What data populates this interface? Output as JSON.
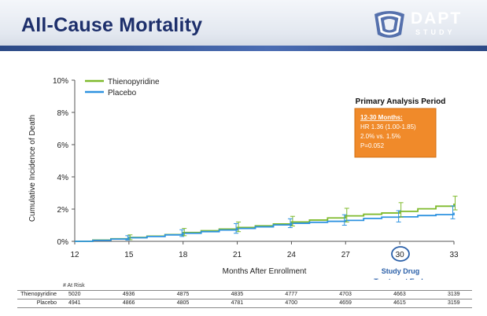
{
  "header": {
    "title": "All-Cause Mortality",
    "logo_main": "DAPT",
    "logo_sub": "STUDY"
  },
  "colors": {
    "thienopyridine": "#7fba2c",
    "placebo": "#2f93e0",
    "box": "#f08a2a",
    "header_blue": "#1d2f6b"
  },
  "chart_data": {
    "type": "line",
    "ylabel": "Cumulative Incidence of Death",
    "xlabel": "Months After Enrollment",
    "x_ticks": [
      12,
      15,
      18,
      21,
      24,
      27,
      30,
      33
    ],
    "y_ticks": [
      "0%",
      "2%",
      "4%",
      "6%",
      "8%",
      "10%"
    ],
    "xlim": [
      12,
      33
    ],
    "ylim": [
      0,
      10
    ],
    "highlight_tick": "30",
    "highlight_note": "Study Drug Treatment Ends",
    "legend": [
      "Thienopyridine",
      "Placebo"
    ],
    "series": [
      {
        "name": "Thienopyridine",
        "x": [
          12,
          13,
          14,
          15,
          16,
          17,
          18,
          19,
          20,
          21,
          22,
          23,
          24,
          25,
          26,
          27,
          28,
          29,
          30,
          31,
          32,
          33
        ],
        "values": [
          0,
          0.08,
          0.16,
          0.24,
          0.32,
          0.42,
          0.55,
          0.66,
          0.76,
          0.86,
          0.96,
          1.08,
          1.2,
          1.32,
          1.45,
          1.58,
          1.68,
          1.76,
          1.86,
          2.02,
          2.18,
          2.34
        ],
        "error_x": [
          15,
          18,
          21,
          24,
          27,
          30,
          33
        ],
        "error_lo": [
          0.1,
          0.35,
          0.6,
          0.95,
          1.2,
          1.5,
          1.95
        ],
        "error_hi": [
          0.4,
          0.8,
          1.2,
          1.55,
          2.05,
          2.4,
          2.8
        ]
      },
      {
        "name": "Placebo",
        "x": [
          12,
          13,
          14,
          15,
          16,
          17,
          18,
          19,
          20,
          21,
          22,
          23,
          24,
          25,
          26,
          27,
          28,
          29,
          30,
          31,
          32,
          33
        ],
        "values": [
          0,
          0.06,
          0.14,
          0.22,
          0.3,
          0.4,
          0.5,
          0.6,
          0.7,
          0.8,
          0.9,
          1.02,
          1.12,
          1.18,
          1.24,
          1.3,
          1.42,
          1.5,
          1.52,
          1.6,
          1.66,
          1.78
        ],
        "error_x": [
          15,
          18,
          21,
          24,
          27,
          30,
          33
        ],
        "error_lo": [
          0.08,
          0.3,
          0.5,
          0.85,
          1.0,
          1.2,
          1.4
        ],
        "error_hi": [
          0.35,
          0.72,
          1.1,
          1.4,
          1.65,
          1.9,
          2.2
        ]
      }
    ],
    "annotation_box": {
      "title": "Primary Analysis Period",
      "lines": [
        "12-30 Months:",
        "HR 1.36 (1.00-1.85)",
        "2.0% vs. 1.5%",
        "P=0.052"
      ]
    }
  },
  "risk_table": {
    "label": "# At Risk",
    "rows": [
      {
        "name": "Thienopyridine",
        "values": [
          "5020",
          "4936",
          "4875",
          "4835",
          "4777",
          "4703",
          "4663",
          "3139"
        ]
      },
      {
        "name": "Placebo",
        "values": [
          "4941",
          "4866",
          "4805",
          "4781",
          "4700",
          "4659",
          "4615",
          "3159"
        ]
      }
    ]
  }
}
